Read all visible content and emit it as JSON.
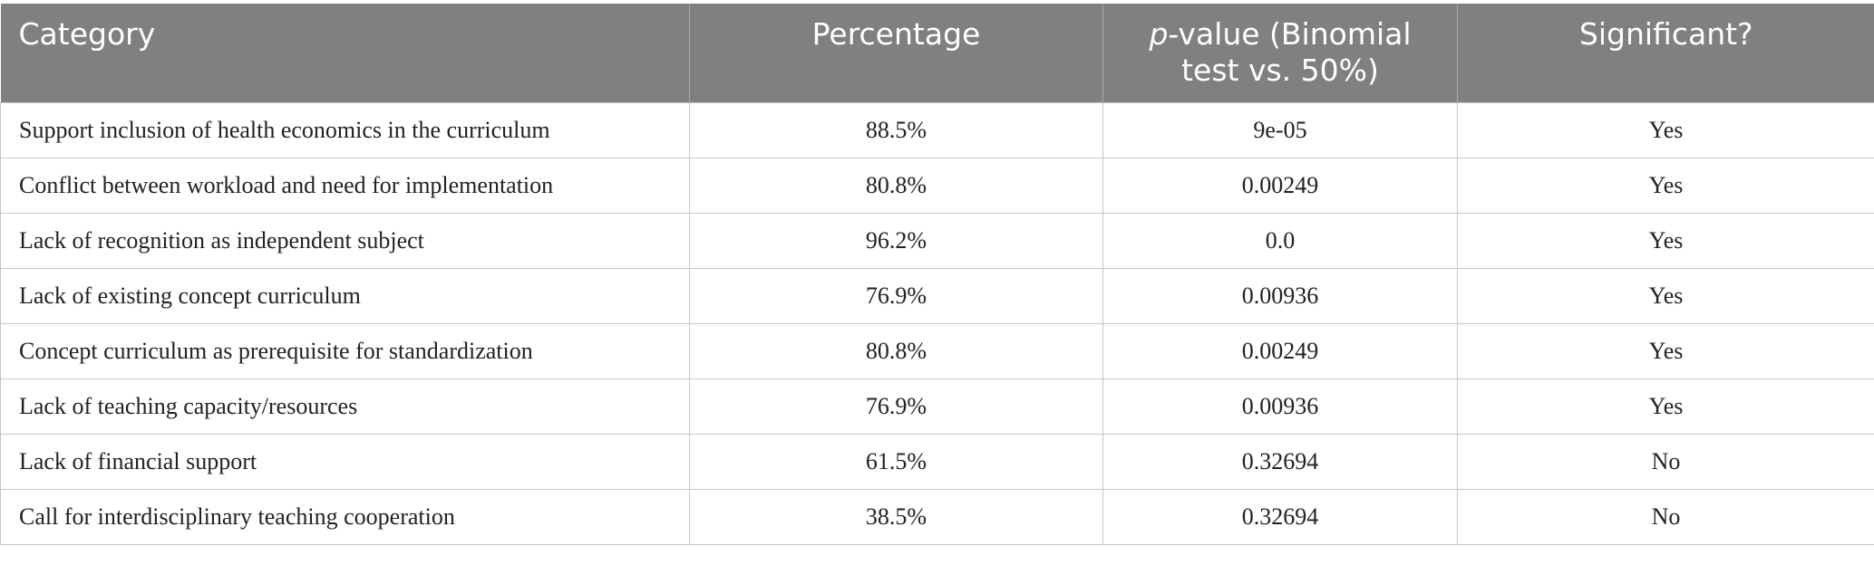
{
  "table": {
    "header": [
      "Category",
      "Percentage",
      {
        "italic": "p",
        "rest": "-value (Binomial test vs. 50%)"
      },
      "Significant?"
    ],
    "rows": [
      [
        "Support inclusion of health economics in the curriculum",
        "88.5%",
        "9e-05",
        "Yes"
      ],
      [
        "Conflict between workload and need for implementation",
        "80.8%",
        "0.00249",
        "Yes"
      ],
      [
        "Lack of recognition as independent subject",
        "96.2%",
        "0.0",
        "Yes"
      ],
      [
        "Lack of existing concept curriculum",
        "76.9%",
        "0.00936",
        "Yes"
      ],
      [
        "Concept curriculum as prerequisite for standardization",
        "80.8%",
        "0.00249",
        "Yes"
      ],
      [
        "Lack of teaching capacity/resources",
        "76.9%",
        "0.00936",
        "Yes"
      ],
      [
        "Lack of financial support",
        "61.5%",
        "0.32694",
        "No"
      ],
      [
        "Call for interdisciplinary teaching cooperation",
        "38.5%",
        "0.32694",
        "No"
      ]
    ]
  }
}
